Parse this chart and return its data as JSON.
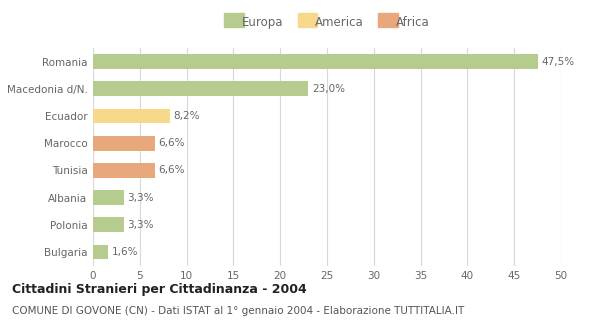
{
  "categories": [
    "Romania",
    "Macedonia d/N.",
    "Ecuador",
    "Marocco",
    "Tunisia",
    "Albania",
    "Polonia",
    "Bulgaria"
  ],
  "values": [
    47.5,
    23.0,
    8.2,
    6.6,
    6.6,
    3.3,
    3.3,
    1.6
  ],
  "labels": [
    "47,5%",
    "23,0%",
    "8,2%",
    "6,6%",
    "6,6%",
    "3,3%",
    "3,3%",
    "1,6%"
  ],
  "colors": [
    "#b5cc8e",
    "#b5cc8e",
    "#f8d98b",
    "#e8a87c",
    "#e8a87c",
    "#b5cc8e",
    "#b5cc8e",
    "#b5cc8e"
  ],
  "legend": [
    {
      "label": "Europa",
      "color": "#b5cc8e"
    },
    {
      "label": "America",
      "color": "#f8d98b"
    },
    {
      "label": "Africa",
      "color": "#e8a87c"
    }
  ],
  "xlim": [
    0,
    50
  ],
  "xticks": [
    0,
    5,
    10,
    15,
    20,
    25,
    30,
    35,
    40,
    45,
    50
  ],
  "title": "Cittadini Stranieri per Cittadinanza - 2004",
  "subtitle": "COMUNE DI GOVONE (CN) - Dati ISTAT al 1° gennaio 2004 - Elaborazione TUTTITALIA.IT",
  "bg_color": "#ffffff",
  "grid_color": "#d8d8d8",
  "bar_height": 0.55,
  "title_fontsize": 9,
  "subtitle_fontsize": 7.5,
  "label_fontsize": 7.5,
  "tick_fontsize": 7.5,
  "legend_fontsize": 8.5
}
